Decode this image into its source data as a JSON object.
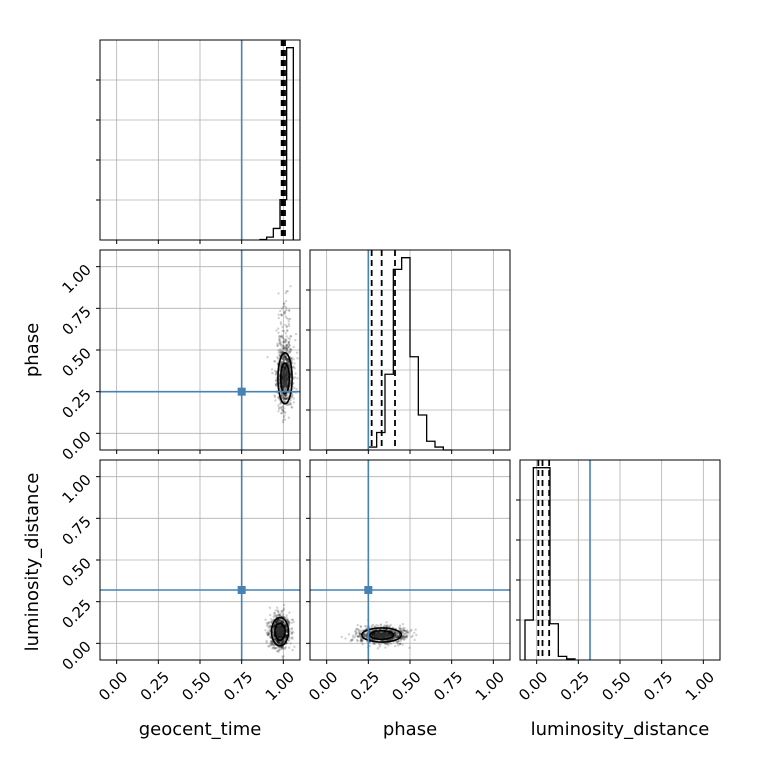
{
  "chart_data": {
    "type": "corner",
    "parameters": [
      "geocent_time",
      "phase",
      "luminosity_distance"
    ],
    "axis_labels": {
      "x": [
        "geocent_time",
        "phase",
        "luminosity_distance"
      ],
      "y": [
        "",
        "phase",
        "luminosity_distance"
      ]
    },
    "tick_values": [
      0.0,
      0.25,
      0.5,
      0.75,
      1.0
    ],
    "tick_labels": [
      "0.00",
      "0.25",
      "0.50",
      "0.75",
      "1.00"
    ],
    "axis_range": [
      -0.1,
      1.1
    ],
    "grid": true,
    "truths": {
      "geocent_time": 0.75,
      "phase": 0.25,
      "luminosity_distance": 0.32
    },
    "truth_color": "#4682b4",
    "sample_color": "#000000",
    "diagonal": [
      {
        "parameter": "geocent_time",
        "bin_edges": [
          0.86,
          0.9,
          0.94,
          0.98,
          1.02,
          1.06
        ],
        "counts": [
          0.5,
          3,
          12,
          42,
          200
        ],
        "quantiles": [
          0.99,
          1.0,
          1.01
        ]
      },
      {
        "parameter": "phase",
        "bin_edges": [
          0.0,
          0.05,
          0.1,
          0.15,
          0.2,
          0.25,
          0.3,
          0.35,
          0.4,
          0.45,
          0.5,
          0.55,
          0.6,
          0.65,
          0.7,
          0.75
        ],
        "counts": [
          0,
          0,
          0,
          0,
          0,
          0.5,
          3,
          13,
          31,
          33,
          16,
          6,
          1.5,
          0.5,
          0
        ],
        "quantiles": [
          0.27,
          0.33,
          0.41
        ]
      },
      {
        "parameter": "luminosity_distance",
        "bin_edges": [
          -0.07,
          -0.02,
          0.03,
          0.08,
          0.13,
          0.18,
          0.23
        ],
        "counts": [
          11,
          53,
          53,
          10,
          1,
          0.3
        ],
        "quantiles": [
          0.01,
          0.035,
          0.075
        ]
      }
    ],
    "joint": [
      {
        "x": "geocent_time",
        "y": "phase",
        "x_center": 1.01,
        "x_spread": 0.025,
        "y_center": 0.33,
        "y_spread": 0.09
      },
      {
        "x": "geocent_time",
        "y": "luminosity_distance",
        "x_center": 0.98,
        "x_spread": 0.03,
        "y_center": 0.07,
        "y_spread": 0.05
      },
      {
        "x": "phase",
        "y": "luminosity_distance",
        "x_center": 0.33,
        "x_spread": 0.07,
        "y_center": 0.05,
        "y_spread": 0.025
      }
    ]
  }
}
